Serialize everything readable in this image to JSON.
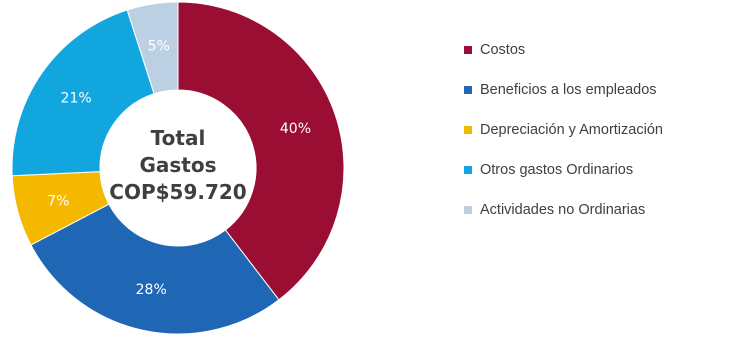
{
  "chart_data": {
    "type": "pie",
    "subtype": "donut",
    "center_label": [
      "Total",
      "Gastos",
      "COP$59.720"
    ],
    "slices": [
      {
        "name": "Costos",
        "value": 40,
        "label": "40%",
        "color": "#9b0e34"
      },
      {
        "name": "Beneficios a los empleados",
        "value": 28,
        "label": "28%",
        "color": "#1f66b4"
      },
      {
        "name": "Depreciación y Amortización",
        "value": 7,
        "label": "7%",
        "color": "#f5b800"
      },
      {
        "name": "Otros gastos Ordinarios",
        "value": 21,
        "label": "21%",
        "color": "#12a6df"
      },
      {
        "name": "Actividades no Ordinarias",
        "value": 5,
        "label": "5%",
        "color": "#bcd0e4"
      }
    ],
    "legend_placement": "right"
  }
}
